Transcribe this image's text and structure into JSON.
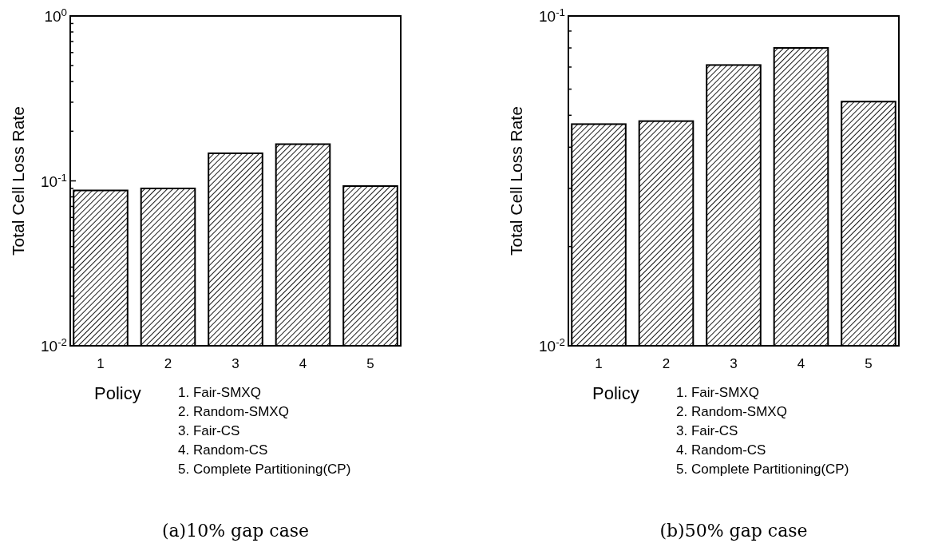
{
  "chart_data": [
    {
      "type": "bar",
      "title": "(a)10% gap case",
      "xlabel": "Policy",
      "ylabel": "Total Cell Loss Rate",
      "categories": [
        "1",
        "2",
        "3",
        "4",
        "5"
      ],
      "values": [
        0.0875,
        0.09,
        0.147,
        0.167,
        0.093
      ],
      "log": "y",
      "ylim": [
        0.01,
        1
      ],
      "yticks": [
        {
          "value": 0.01,
          "label": "10$^{-2}$"
        },
        {
          "value": 0.02,
          "label": null
        },
        {
          "value": 0.03,
          "label": null
        },
        {
          "value": 0.04,
          "label": null
        },
        {
          "value": 0.05,
          "label": null
        },
        {
          "value": 0.06,
          "label": null
        },
        {
          "value": 0.07,
          "label": null
        },
        {
          "value": 0.08,
          "label": null
        },
        {
          "value": 0.09,
          "label": null
        },
        {
          "value": 0.1,
          "label": "10$^{-1}$"
        },
        {
          "value": 0.2,
          "label": null
        },
        {
          "value": 0.3,
          "label": null
        },
        {
          "value": 0.4,
          "label": null
        },
        {
          "value": 0.5,
          "label": null
        },
        {
          "value": 0.6,
          "label": null
        },
        {
          "value": 0.7,
          "label": null
        },
        {
          "value": 0.8,
          "label": null
        },
        {
          "value": 0.9,
          "label": null
        },
        {
          "value": 1,
          "label": "10$^{0}$"
        }
      ],
      "annotations": [
        "1. Fair-SMXQ",
        "2. Random-SMXQ",
        "3. Fair-CS",
        "4. Random-CS",
        "5. Complete Partitioning(CP)"
      ]
    },
    {
      "type": "bar",
      "title": "(b)50% gap case",
      "xlabel": "Policy",
      "ylabel": "Total Cell Loss Rate",
      "categories": [
        "1",
        "2",
        "3",
        "4",
        "5"
      ],
      "values": [
        0.047,
        0.048,
        0.071,
        0.08,
        0.055
      ],
      "log": "y",
      "ylim": [
        0.01,
        0.1
      ],
      "yticks": [
        {
          "value": 0.01,
          "label": "10$^{-2}$"
        },
        {
          "value": 0.02,
          "label": null
        },
        {
          "value": 0.03,
          "label": null
        },
        {
          "value": 0.04,
          "label": null
        },
        {
          "value": 0.05,
          "label": null
        },
        {
          "value": 0.06,
          "label": null
        },
        {
          "value": 0.07,
          "label": null
        },
        {
          "value": 0.08,
          "label": null
        },
        {
          "value": 0.09,
          "label": null
        },
        {
          "value": 0.1,
          "label": "10$^{-1}$"
        }
      ],
      "annotations": [
        "1. Fair-SMXQ",
        "2. Random-SMXQ",
        "3. Fair-CS",
        "4. Random-CS",
        "5. Complete Partitioning(CP)"
      ]
    }
  ]
}
